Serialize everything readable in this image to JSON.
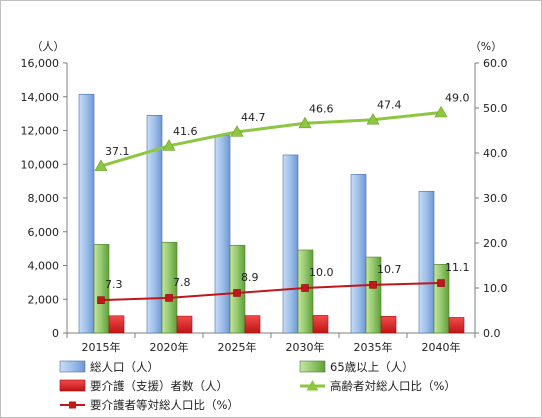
{
  "chart_data": {
    "type": "bar",
    "categories": [
      "2015年",
      "2020年",
      "2025年",
      "2030年",
      "2035年",
      "2040年"
    ],
    "left_axis": {
      "unit": "（人）",
      "min": 0,
      "max": 16000,
      "step": 2000,
      "tick_labels": [
        "0",
        "2,000",
        "4,000",
        "6,000",
        "8,000",
        "10,000",
        "12,000",
        "14,000",
        "16,000"
      ]
    },
    "right_axis": {
      "unit": "（%）",
      "min": 0,
      "max": 60,
      "step": 10,
      "tick_labels": [
        "0.0",
        "10.0",
        "20.0",
        "30.0",
        "40.0",
        "50.0",
        "60.0"
      ]
    },
    "series": [
      {
        "name": "総人口（人）",
        "kind": "bar",
        "axis": "left",
        "color": "#8fb4e3",
        "values": [
          14150,
          12900,
          11700,
          10550,
          9400,
          8400
        ]
      },
      {
        "name": "65歳以上（人）",
        "kind": "bar",
        "axis": "left",
        "color": "#8cc063",
        "values": [
          5250,
          5380,
          5200,
          4920,
          4500,
          4070
        ]
      },
      {
        "name": "要介護（支援）者数（人）",
        "kind": "bar",
        "axis": "left",
        "color": "#e02020",
        "values": [
          1020,
          1000,
          1030,
          1040,
          990,
          920
        ]
      },
      {
        "name": "高齢者対総人口比（%）",
        "kind": "line",
        "axis": "right",
        "color": "#8dc63f",
        "marker": "triangle",
        "values": [
          37.1,
          41.6,
          44.7,
          46.6,
          47.4,
          49.0
        ],
        "data_labels": [
          "37.1",
          "41.6",
          "44.7",
          "46.6",
          "47.4",
          "49.0"
        ]
      },
      {
        "name": "要介護者等対総人口比（%）",
        "kind": "line",
        "axis": "right",
        "color": "#c0161c",
        "marker": "square",
        "values": [
          7.3,
          7.8,
          8.9,
          10.0,
          10.7,
          11.1
        ],
        "data_labels": [
          "7.3",
          "7.8",
          "8.9",
          "10.0",
          "10.7",
          "11.1"
        ]
      }
    ],
    "grid": false,
    "legend_position": "bottom"
  }
}
